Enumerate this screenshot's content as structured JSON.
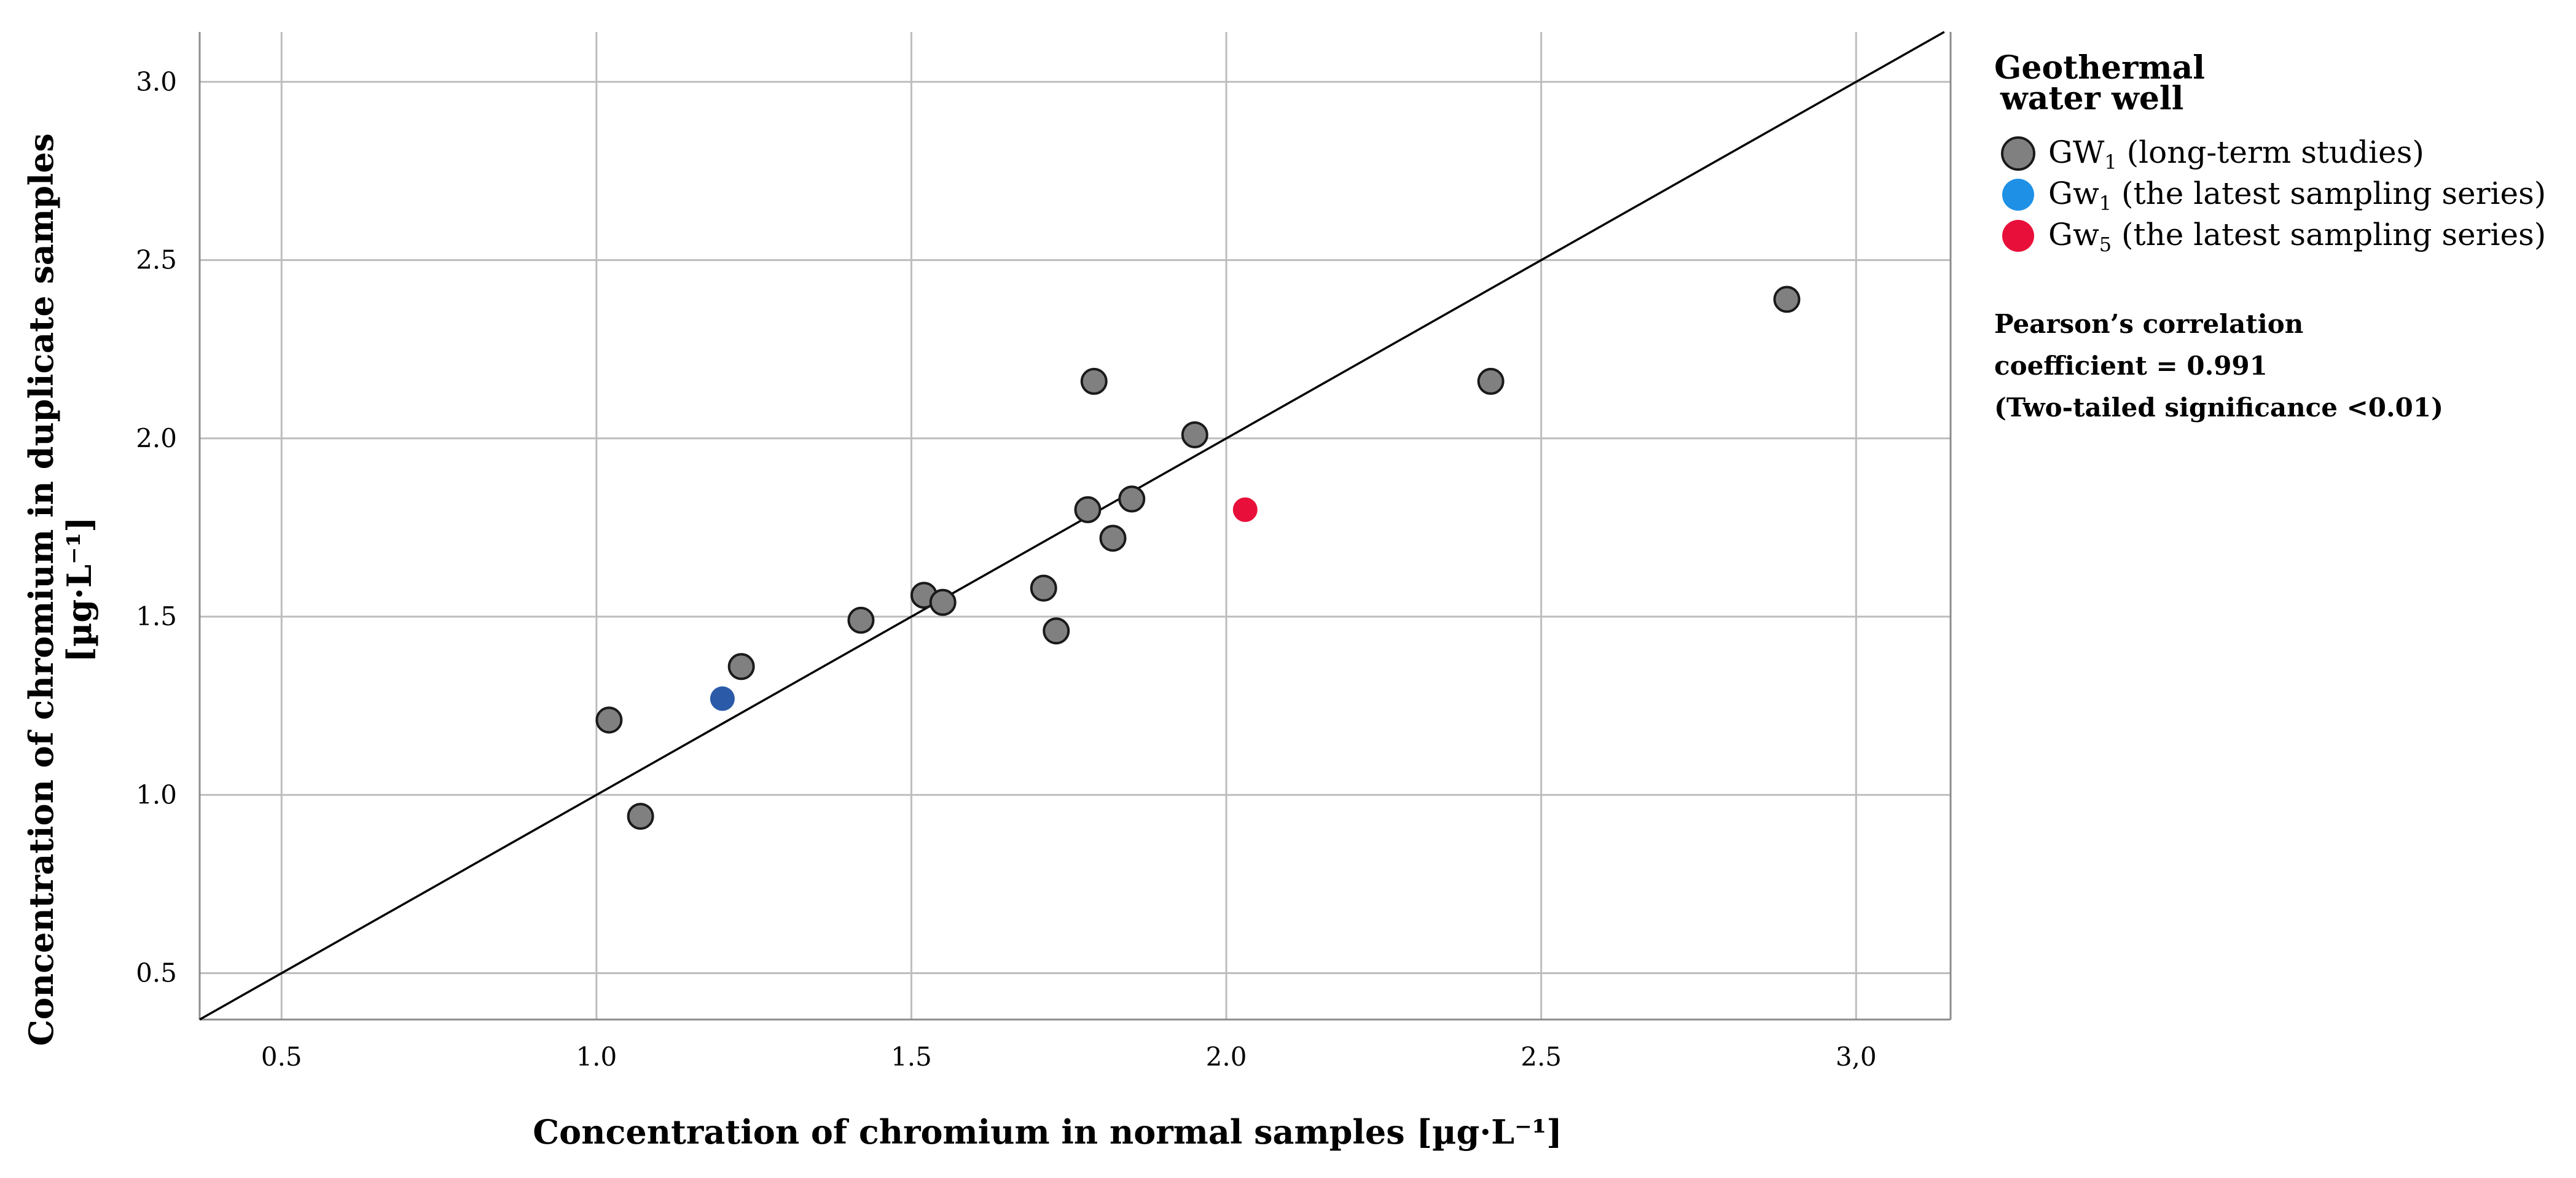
{
  "chart_data": {
    "type": "scatter",
    "xlabel": "Concentration of chromium in normal samples [µg·L⁻¹]",
    "ylabel_line1": "Concentration of chromium in duplicate samples",
    "ylabel_line2": "[µg·L⁻¹]",
    "xlim": [
      0.37,
      3.15
    ],
    "ylim": [
      0.37,
      3.14
    ],
    "x_ticks": [
      0.5,
      1.0,
      1.5,
      2.0,
      2.5,
      3.0
    ],
    "x_tick_labels": [
      "0.5",
      "1.0",
      "1.5",
      "2.0",
      "2.5",
      "3,0"
    ],
    "y_ticks": [
      0.5,
      1.0,
      1.5,
      2.0,
      2.5,
      3.0
    ],
    "y_tick_labels": [
      "0.5",
      "1.0",
      "1.5",
      "2.0",
      "2.5",
      "3.0"
    ],
    "grid": true,
    "reference_line": "y = x",
    "legend": {
      "title_line1": "Geothermal",
      "title_line2": "water well",
      "position": "right"
    },
    "series": [
      {
        "name_prefix": "GW",
        "name_sub": "1",
        "name_suffix": " (long-term studies)",
        "color": "#808080",
        "edge_color": "#1a1a1a",
        "points": [
          {
            "x": 1.02,
            "y": 1.21
          },
          {
            "x": 1.07,
            "y": 0.94
          },
          {
            "x": 1.23,
            "y": 1.36
          },
          {
            "x": 1.42,
            "y": 1.49
          },
          {
            "x": 1.52,
            "y": 1.56
          },
          {
            "x": 1.55,
            "y": 1.54
          },
          {
            "x": 1.71,
            "y": 1.58
          },
          {
            "x": 1.73,
            "y": 1.46
          },
          {
            "x": 1.78,
            "y": 1.8
          },
          {
            "x": 1.79,
            "y": 2.16
          },
          {
            "x": 1.82,
            "y": 1.72
          },
          {
            "x": 1.85,
            "y": 1.83
          },
          {
            "x": 1.95,
            "y": 2.01
          },
          {
            "x": 2.42,
            "y": 2.16
          },
          {
            "x": 2.89,
            "y": 2.39
          }
        ]
      },
      {
        "name_prefix": "Gw",
        "name_sub": "1",
        "name_suffix": " (the latest sampling series)",
        "color": "#1e90e6",
        "point_color": "#2b5ba8",
        "edge_color": "none",
        "points": [
          {
            "x": 1.2,
            "y": 1.27
          }
        ]
      },
      {
        "name_prefix": "Gw",
        "name_sub": "5",
        "name_suffix": " (the latest sampling series)",
        "color": "#e8103a",
        "point_color": "#e8103a",
        "edge_color": "none",
        "points": [
          {
            "x": 2.03,
            "y": 1.8
          }
        ]
      }
    ],
    "annotation": {
      "line1": "Pearson’s correlation",
      "line2": "coefficient = 0.991",
      "line3": "(Two-tailed significance <0.01)"
    }
  }
}
